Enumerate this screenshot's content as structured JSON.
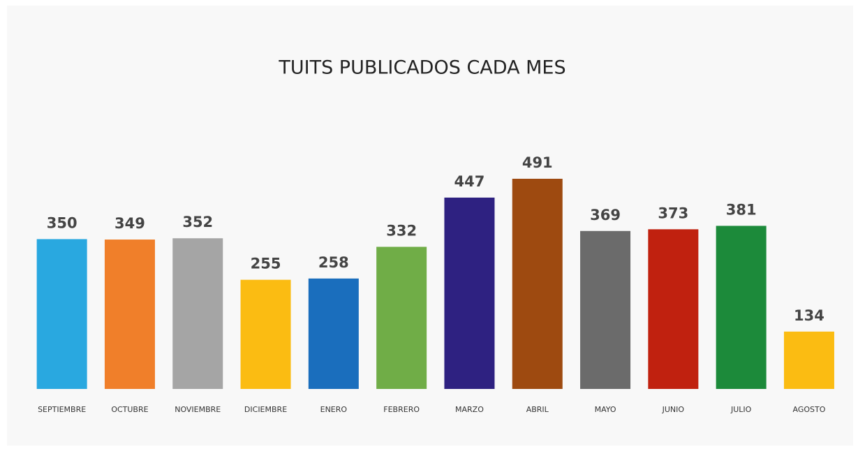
{
  "chart_data": {
    "type": "bar",
    "title": "TUITS PUBLICADOS CADA MES",
    "categories": [
      "SEPTIEMBRE",
      "OCTUBRE",
      "NOVIEMBRE",
      "DICIEMBRE",
      "ENERO",
      "FEBRERO",
      "MARZO",
      "ABRIL",
      "MAYO",
      "JUNIO",
      "JULIO",
      "AGOSTO"
    ],
    "values": [
      350,
      349,
      352,
      255,
      258,
      332,
      447,
      491,
      369,
      373,
      381,
      134
    ],
    "colors": [
      "#29a8e0",
      "#f07f2a",
      "#a5a5a5",
      "#fbbc12",
      "#1a6ebd",
      "#70ad47",
      "#2e2181",
      "#9e4a10",
      "#6b6b6b",
      "#c0210f",
      "#1c8a3a",
      "#fbbc12"
    ]
  }
}
